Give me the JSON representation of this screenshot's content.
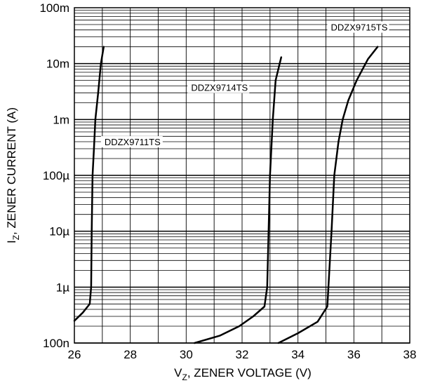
{
  "chart_data": {
    "type": "line",
    "title": "",
    "xlabel": {
      "main": "V",
      "sub": "Z",
      "rest": ", ZENER VOLTAGE (V)"
    },
    "ylabel": {
      "main": "I",
      "sub": "Z",
      "rest": ", ZENER CURRENT (A)"
    },
    "xlim": [
      26,
      38
    ],
    "ylim": [
      1e-07,
      0.1
    ],
    "yscale": "log",
    "grid": true,
    "x_ticks": [
      {
        "value": 26,
        "label": "26"
      },
      {
        "value": 28,
        "label": "28"
      },
      {
        "value": 30,
        "label": "30"
      },
      {
        "value": 32,
        "label": "32"
      },
      {
        "value": 34,
        "label": "34"
      },
      {
        "value": 36,
        "label": "36"
      },
      {
        "value": 38,
        "label": "38"
      }
    ],
    "y_ticks": [
      {
        "value": 1e-07,
        "label": "100n"
      },
      {
        "value": 1e-06,
        "label": "1µ"
      },
      {
        "value": 1e-05,
        "label": "10µ"
      },
      {
        "value": 0.0001,
        "label": "100µ"
      },
      {
        "value": 0.001,
        "label": "1m"
      },
      {
        "value": 0.01,
        "label": "10m"
      },
      {
        "value": 0.1,
        "label": "100m"
      }
    ],
    "series": [
      {
        "name": "DDZX9711TS",
        "x": [
          26.0,
          26.3,
          26.55,
          26.6,
          26.62,
          26.65,
          26.7,
          26.75,
          26.85,
          26.95,
          27.05
        ],
        "y": [
          2.5e-07,
          3.5e-07,
          5e-07,
          1e-06,
          1e-05,
          0.0001,
          0.0003,
          0.001,
          0.003,
          0.01,
          0.02
        ]
      },
      {
        "name": "DDZX9714TS",
        "x": [
          30.3,
          31.2,
          31.9,
          32.4,
          32.8,
          32.9,
          32.95,
          33.0,
          33.1,
          33.2,
          33.4
        ],
        "y": [
          1e-07,
          1.35e-07,
          2e-07,
          3e-07,
          4.5e-07,
          1e-06,
          1e-05,
          0.0001,
          0.001,
          0.005,
          0.013
        ]
      },
      {
        "name": "DDZX9715TS",
        "x": [
          33.3,
          34.0,
          34.7,
          35.05,
          35.2,
          35.3,
          35.45,
          35.6,
          35.8,
          36.1,
          36.5,
          36.85
        ],
        "y": [
          1e-07,
          1.5e-07,
          2.4e-07,
          4.5e-07,
          1e-05,
          0.0001,
          0.0004,
          0.001,
          0.0022,
          0.005,
          0.012,
          0.02
        ]
      }
    ]
  }
}
